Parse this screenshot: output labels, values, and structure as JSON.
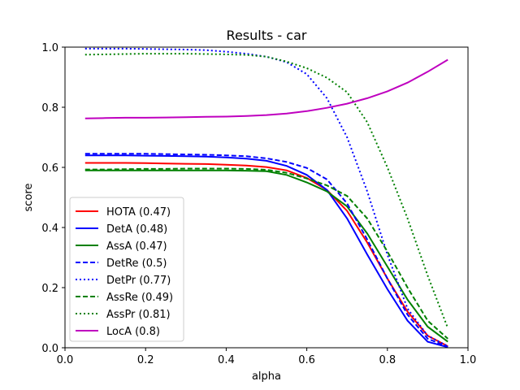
{
  "chart_data": {
    "type": "line",
    "title": "Results - car",
    "xlabel": "alpha",
    "ylabel": "score",
    "xlim": [
      0.0,
      1.0
    ],
    "ylim": [
      0.0,
      1.0
    ],
    "xticks": [
      "0.0",
      "0.2",
      "0.4",
      "0.6",
      "0.8",
      "1.0"
    ],
    "yticks": [
      "0.0",
      "0.2",
      "0.4",
      "0.6",
      "0.8",
      "1.0"
    ],
    "grid": false,
    "legend_position": "lower-left",
    "x": [
      0.05,
      0.1,
      0.15,
      0.2,
      0.25,
      0.3,
      0.35,
      0.4,
      0.45,
      0.5,
      0.55,
      0.6,
      0.65,
      0.7,
      0.75,
      0.8,
      0.85,
      0.9,
      0.95
    ],
    "series": [
      {
        "name": "HOTA (0.47)",
        "color": "#ff0000",
        "style": "solid",
        "values": [
          0.615,
          0.615,
          0.615,
          0.614,
          0.613,
          0.612,
          0.611,
          0.609,
          0.606,
          0.601,
          0.59,
          0.565,
          0.525,
          0.455,
          0.35,
          0.23,
          0.12,
          0.04,
          0.005
        ]
      },
      {
        "name": "DetA (0.48)",
        "color": "#0000ff",
        "style": "solid",
        "values": [
          0.64,
          0.64,
          0.64,
          0.639,
          0.638,
          0.637,
          0.636,
          0.633,
          0.629,
          0.622,
          0.605,
          0.575,
          0.525,
          0.43,
          0.31,
          0.195,
          0.09,
          0.02,
          0.002
        ]
      },
      {
        "name": "AssA (0.47)",
        "color": "#008000",
        "style": "solid",
        "values": [
          0.59,
          0.59,
          0.59,
          0.59,
          0.59,
          0.59,
          0.59,
          0.59,
          0.589,
          0.587,
          0.575,
          0.55,
          0.52,
          0.47,
          0.38,
          0.27,
          0.16,
          0.07,
          0.02
        ]
      },
      {
        "name": "DetRe (0.5)",
        "color": "#0000ff",
        "style": "dashed",
        "values": [
          0.645,
          0.645,
          0.645,
          0.645,
          0.644,
          0.643,
          0.642,
          0.64,
          0.637,
          0.63,
          0.618,
          0.598,
          0.56,
          0.48,
          0.36,
          0.23,
          0.11,
          0.03,
          0.003
        ]
      },
      {
        "name": "DetPr (0.77)",
        "color": "#0000ff",
        "style": "dotted",
        "values": [
          0.995,
          0.995,
          0.995,
          0.994,
          0.993,
          0.992,
          0.99,
          0.985,
          0.978,
          0.968,
          0.95,
          0.91,
          0.83,
          0.7,
          0.52,
          0.31,
          0.13,
          0.04,
          0.005
        ]
      },
      {
        "name": "AssRe (0.49)",
        "color": "#008000",
        "style": "dashed",
        "values": [
          0.593,
          0.593,
          0.594,
          0.595,
          0.595,
          0.596,
          0.596,
          0.596,
          0.595,
          0.592,
          0.582,
          0.563,
          0.54,
          0.505,
          0.43,
          0.32,
          0.2,
          0.09,
          0.03
        ]
      },
      {
        "name": "AssPr (0.81)",
        "color": "#008000",
        "style": "dotted",
        "values": [
          0.975,
          0.976,
          0.977,
          0.978,
          0.978,
          0.978,
          0.977,
          0.976,
          0.974,
          0.968,
          0.952,
          0.93,
          0.898,
          0.85,
          0.75,
          0.6,
          0.43,
          0.24,
          0.065
        ]
      },
      {
        "name": "LocA (0.8)",
        "color": "#bf00bf",
        "style": "solid",
        "values": [
          0.763,
          0.764,
          0.765,
          0.765,
          0.766,
          0.767,
          0.768,
          0.769,
          0.771,
          0.774,
          0.779,
          0.787,
          0.798,
          0.812,
          0.83,
          0.853,
          0.882,
          0.918,
          0.958
        ]
      }
    ]
  }
}
